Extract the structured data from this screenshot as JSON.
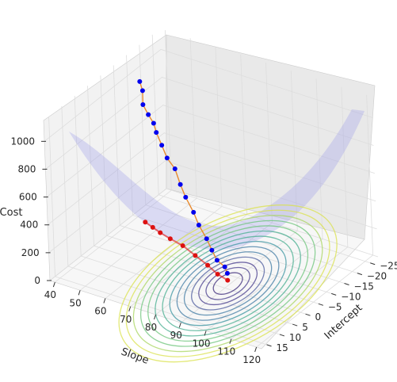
{
  "chart_data": {
    "type": "surface3d",
    "zlabel": "Cost",
    "xlabel": "Slope",
    "ylabel": "Intercept",
    "x_ticks": [
      40,
      50,
      60,
      70,
      80,
      90,
      100,
      110,
      120
    ],
    "y_ticks": [
      -25,
      -20,
      -15,
      -10,
      -5,
      0,
      5,
      10,
      15
    ],
    "z_ticks": [
      0,
      200,
      400,
      600,
      800,
      1000
    ],
    "xlim": [
      38,
      122
    ],
    "ylim": [
      -28,
      17
    ],
    "zlim": [
      0,
      1150
    ],
    "grid": true,
    "surface": {
      "description": "quadratic cost surface",
      "min_at": {
        "slope": 90,
        "intercept": -3,
        "cost": 10
      },
      "color": "#9999ee"
    },
    "contours_on_floor": true,
    "series": [
      {
        "marker_color": "#0000ee",
        "line_color": "#e88a2e",
        "points": [
          {
            "slope": 44,
            "intercept": -14,
            "cost": 1010
          },
          {
            "slope": 45,
            "intercept": -14,
            "cost": 950
          },
          {
            "slope": 46,
            "intercept": -13,
            "cost": 870
          },
          {
            "slope": 48,
            "intercept": -13,
            "cost": 810
          },
          {
            "slope": 50,
            "intercept": -13,
            "cost": 760
          },
          {
            "slope": 52,
            "intercept": -12,
            "cost": 720
          },
          {
            "slope": 54,
            "intercept": -12,
            "cost": 640
          },
          {
            "slope": 57,
            "intercept": -11,
            "cost": 580
          },
          {
            "slope": 60,
            "intercept": -11,
            "cost": 520
          },
          {
            "slope": 63,
            "intercept": -10,
            "cost": 440
          },
          {
            "slope": 66,
            "intercept": -9,
            "cost": 380
          },
          {
            "slope": 70,
            "intercept": -8,
            "cost": 310
          },
          {
            "slope": 73,
            "intercept": -7,
            "cost": 250
          },
          {
            "slope": 77,
            "intercept": -6,
            "cost": 190
          },
          {
            "slope": 80,
            "intercept": -5,
            "cost": 140
          },
          {
            "slope": 83,
            "intercept": -4,
            "cost": 100
          },
          {
            "slope": 86,
            "intercept": -4,
            "cost": 70
          },
          {
            "slope": 88,
            "intercept": -3,
            "cost": 50
          }
        ]
      },
      {
        "marker_color": "#dd1111",
        "points": [
          {
            "slope": 44,
            "intercept": -14,
            "cost": 0
          },
          {
            "slope": 48,
            "intercept": -13,
            "cost": 0
          },
          {
            "slope": 52,
            "intercept": -12,
            "cost": 0
          },
          {
            "slope": 57,
            "intercept": -11,
            "cost": 0
          },
          {
            "slope": 63,
            "intercept": -10,
            "cost": 0
          },
          {
            "slope": 70,
            "intercept": -8,
            "cost": 0
          },
          {
            "slope": 77,
            "intercept": -6,
            "cost": 0
          },
          {
            "slope": 83,
            "intercept": -4,
            "cost": 0
          },
          {
            "slope": 88,
            "intercept": -3,
            "cost": 0
          }
        ]
      }
    ]
  }
}
